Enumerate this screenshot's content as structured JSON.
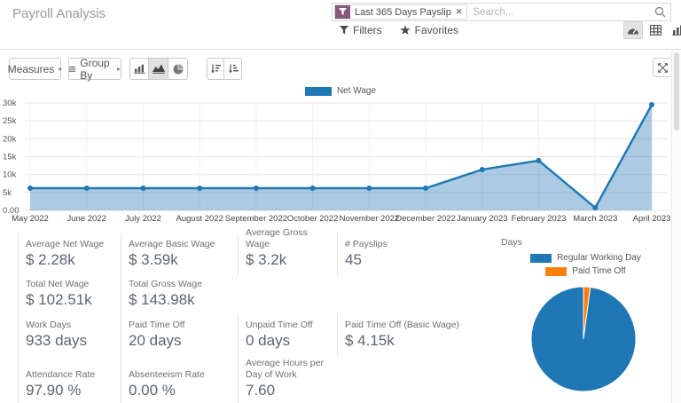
{
  "header": {
    "title": "Payroll Analysis",
    "search": {
      "facet_label": "Last 365 Days Payslip",
      "facet_remove": "✕",
      "placeholder": "Search...",
      "facet_color": "#875A7B"
    },
    "filters_label": "Filters",
    "favorites_label": "Favorites",
    "views": [
      {
        "name": "dashboard",
        "active": true
      },
      {
        "name": "pivot",
        "active": false
      },
      {
        "name": "graph",
        "active": false
      }
    ]
  },
  "toolbar": {
    "measures_label": "Measures",
    "group_by_label": "Group By",
    "caret": "▸"
  },
  "chart_data": [
    {
      "type": "area",
      "title": "Net Wage",
      "categories": [
        "May 2022",
        "June 2022",
        "July 2022",
        "August 2022",
        "September 2022",
        "October 2022",
        "November 2022",
        "December 2022",
        "January 2023",
        "February 2023",
        "March 2023",
        "April 2023"
      ],
      "series": [
        {
          "name": "Net Wage",
          "values": [
            6200,
            6200,
            6200,
            6200,
            6200,
            6200,
            6200,
            6200,
            11400,
            13900,
            750,
            29500
          ]
        }
      ],
      "ylim": [
        0,
        30000
      ],
      "yticks": [
        {
          "value": 0,
          "label": "0.00"
        },
        {
          "value": 5000,
          "label": "5k"
        },
        {
          "value": 10000,
          "label": "10k"
        },
        {
          "value": 15000,
          "label": "15k"
        },
        {
          "value": 20000,
          "label": "20k"
        },
        {
          "value": 25000,
          "label": "25k"
        },
        {
          "value": 30000,
          "label": "30k"
        }
      ],
      "color": "#1f77b4",
      "area_fill": "rgba(31,119,180,0.38)",
      "grid": true,
      "legend_position": "top"
    },
    {
      "type": "pie",
      "title": "Days",
      "labels": [
        "Regular Working Day",
        "Paid Time Off"
      ],
      "values": [
        933,
        20
      ],
      "colors": [
        "#1f77b4",
        "#ff7f0e"
      ],
      "legend_position": "top"
    }
  ],
  "stats": {
    "rows": [
      [
        {
          "label": "Average Net Wage",
          "value": "$ 2.28k"
        },
        {
          "label": "Average Basic Wage",
          "value": "$ 3.59k"
        },
        {
          "label": "Average Gross Wage",
          "value": "$ 3.2k"
        },
        {
          "label": "# Payslips",
          "value": "45"
        }
      ],
      [
        {
          "label": "Total Net Wage",
          "value": "$ 102.51k"
        },
        {
          "label": "Total Gross Wage",
          "value": "$ 143.98k"
        }
      ],
      [
        {
          "label": "Work Days",
          "value": "933 days"
        },
        {
          "label": "Paid Time Off",
          "value": "20 days"
        },
        {
          "label": "Unpaid Time Off",
          "value": "0 days"
        },
        {
          "label": "Paid Time Off (Basic Wage)",
          "value": "$ 4.15k"
        }
      ],
      [
        {
          "label": "Attendance Rate",
          "value": "97.90 %"
        },
        {
          "label": "Absenteeism Rate",
          "value": "0.00 %"
        },
        {
          "label": "Average Hours per Day of Work",
          "value": "7.60"
        }
      ]
    ]
  },
  "pie_section": {
    "title": "Days",
    "legend": [
      {
        "label": "Regular Working Day",
        "color": "#1f77b4"
      },
      {
        "label": "Paid Time Off",
        "color": "#ff7f0e"
      }
    ]
  }
}
